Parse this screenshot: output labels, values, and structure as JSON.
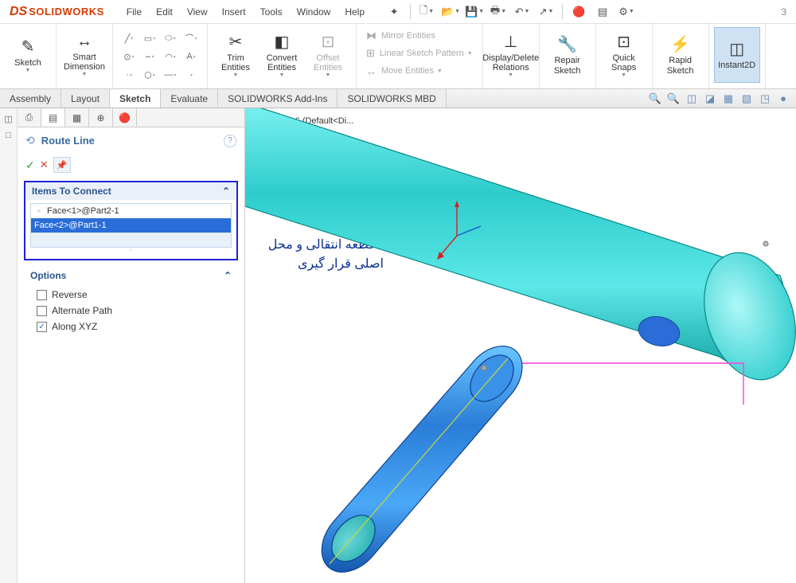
{
  "app": {
    "logo_prefix": "DS",
    "logo_text": "SOLIDWORKS"
  },
  "menu": [
    "File",
    "Edit",
    "View",
    "Insert",
    "Tools",
    "Window",
    "Help"
  ],
  "qat": [
    {
      "name": "star-icon",
      "glyph": "✦",
      "dd": false
    },
    {
      "sep": true
    },
    {
      "name": "new-icon",
      "glyph": "🗋",
      "dd": true
    },
    {
      "name": "open-icon",
      "glyph": "📂",
      "dd": true
    },
    {
      "name": "save-icon",
      "glyph": "💾",
      "dd": true
    },
    {
      "name": "print-icon",
      "glyph": "🖶",
      "dd": true
    },
    {
      "name": "undo-icon",
      "glyph": "↶",
      "dd": true
    },
    {
      "name": "select-icon",
      "glyph": "↗",
      "dd": true
    },
    {
      "sep": true
    },
    {
      "name": "rebuild-icon",
      "glyph": "🔴",
      "dd": false
    },
    {
      "name": "options-list-icon",
      "glyph": "▤",
      "dd": false
    },
    {
      "name": "settings-icon",
      "glyph": "⚙",
      "dd": true
    }
  ],
  "ribbon": {
    "groups": [
      {
        "items": [
          {
            "type": "big",
            "name": "sketch-tool",
            "icon": "✎",
            "label": "Sketch",
            "dd": true
          }
        ]
      },
      {
        "items": [
          {
            "type": "big",
            "name": "smart-dimension",
            "icon": "↔",
            "label": "Smart Dimension",
            "dd": true
          }
        ]
      },
      {
        "items": [
          {
            "type": "grid",
            "rows": [
              [
                "╱",
                "▭",
                "⬭",
                "⌒"
              ],
              [
                "⊙",
                "⌢",
                "◠",
                "A"
              ],
              [
                "·",
                "⬡",
                "—",
                " "
              ]
            ]
          }
        ]
      },
      {
        "items": [
          {
            "type": "big",
            "name": "trim-entities",
            "icon": "✂",
            "label": "Trim Entities",
            "dd": true
          },
          {
            "type": "big",
            "name": "convert-entities",
            "icon": "◧",
            "label": "Convert Entities",
            "dd": true
          },
          {
            "type": "big",
            "name": "offset-entities",
            "icon": "⊡",
            "label": "Offset Entities",
            "disabled": true,
            "dd": true
          }
        ]
      },
      {
        "items": [
          {
            "type": "list",
            "rows": [
              {
                "name": "mirror-entities",
                "icon": "⧓",
                "label": "Mirror Entities",
                "disabled": true
              },
              {
                "name": "linear-pattern",
                "icon": "⊞",
                "label": "Linear Sketch Pattern",
                "disabled": true,
                "dd": true
              },
              {
                "name": "move-entities",
                "icon": "↔",
                "label": "Move Entities",
                "disabled": true,
                "dd": true
              }
            ]
          }
        ]
      },
      {
        "items": [
          {
            "type": "big",
            "name": "display-delete-relations",
            "icon": "⊥",
            "label": "Display/Delete Relations",
            "dd": true
          }
        ]
      },
      {
        "items": [
          {
            "type": "big",
            "name": "repair-sketch",
            "icon": "🔧",
            "label": "Repair Sketch"
          }
        ]
      },
      {
        "items": [
          {
            "type": "big",
            "name": "quick-snaps",
            "icon": "⊡",
            "label": "Quick Snaps",
            "dd": true
          }
        ]
      },
      {
        "items": [
          {
            "type": "big",
            "name": "rapid-sketch",
            "icon": "⚡",
            "label": "Rapid Sketch"
          }
        ]
      },
      {
        "items": [
          {
            "type": "big",
            "name": "instant2d",
            "icon": "◫",
            "label": "Instant2D",
            "active": true
          }
        ]
      }
    ]
  },
  "tabs": {
    "items": [
      "Assembly",
      "Layout",
      "Sketch",
      "Evaluate",
      "SOLIDWORKS Add-Ins",
      "SOLIDWORKS MBD"
    ],
    "active": "Sketch",
    "right": [
      {
        "name": "zoom-fit-icon",
        "glyph": "🔍"
      },
      {
        "name": "zoom-area-icon",
        "glyph": "🔍"
      },
      {
        "name": "view-front-icon",
        "glyph": "◫"
      },
      {
        "name": "section-icon",
        "glyph": "◪"
      },
      {
        "name": "display-style-icon",
        "glyph": "▦"
      },
      {
        "name": "scene-icon",
        "glyph": "▧"
      },
      {
        "name": "hide-show-icon",
        "glyph": "◳"
      },
      {
        "name": "appearance-icon",
        "glyph": "●"
      }
    ]
  },
  "sidebar": {
    "gutter": [
      "◫",
      "□"
    ],
    "tabs": [
      {
        "name": "feature-tree-tab",
        "glyph": "⎙",
        "active": false
      },
      {
        "name": "property-tab",
        "glyph": "▤",
        "active": true
      },
      {
        "name": "config-tab",
        "glyph": "▦",
        "active": false
      },
      {
        "name": "display-tab",
        "glyph": "⊕",
        "active": false
      },
      {
        "name": "appearance-tab",
        "glyph": "🔴",
        "active": false
      }
    ],
    "panel": {
      "icon": "⟲",
      "title": "Route Line",
      "help": "?",
      "ok": "✓",
      "cancel": "✕",
      "pin": "📌"
    },
    "items_section": {
      "title": "Items To Connect",
      "chevron": "⌃",
      "rows": [
        {
          "icon": "▫",
          "text": "Face<1>@Part2-1",
          "selected": false
        },
        {
          "icon": "",
          "text": "Face<2>@Part1-1",
          "selected": true
        }
      ]
    },
    "options": {
      "title": "Options",
      "chevron": "⌃",
      "items": [
        {
          "name": "reverse-check",
          "label": "Reverse",
          "checked": false
        },
        {
          "name": "alternate-path-check",
          "label": "Alternate Path",
          "checked": false
        },
        {
          "name": "along-xyz-check",
          "label": "Along XYZ",
          "checked": true
        }
      ]
    }
  },
  "viewport": {
    "breadcrumb": {
      "icon": "▸",
      "cube": "⎈",
      "text": "Assem6  (Default<Di..."
    },
    "annotation": "انتخاب قطعه انتقالی و محل اصلی قرار گیری",
    "colors": {
      "cyl1_light": "#5de8e8",
      "cyl1_mid": "#2ecccc",
      "cyl1_dark": "#1aa8a8",
      "cyl1_face": "#7ef2f2",
      "cyl2_light": "#4aa8f8",
      "cyl2_mid": "#2a7ed8",
      "cyl2_dark": "#1658b0",
      "cyl2_face": "#3dc8c8",
      "hole": "#2a6dd8",
      "route": "#ff3fd5",
      "axis1": "#d62020",
      "centerline": "#c8d83a"
    }
  }
}
